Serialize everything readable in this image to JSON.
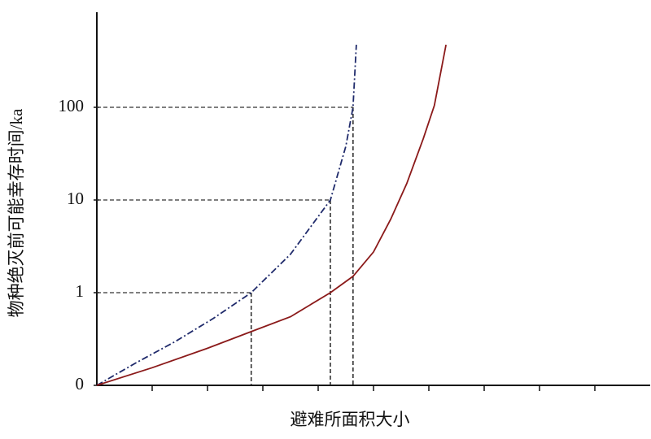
{
  "chart_data": {
    "type": "line",
    "xlabel": "避难所面积大小",
    "ylabel": "物种绝灭前可能幸存时间/ka",
    "yscale": "symlog",
    "xlim": [
      0,
      10
    ],
    "xticks": [
      1,
      2,
      3,
      4,
      5,
      6,
      7,
      8,
      9
    ],
    "ylim": [
      0,
      1000
    ],
    "yticks": [
      0,
      1,
      10,
      100
    ],
    "series": [
      {
        "color": "#1f2a6b",
        "dash": "dashdot",
        "x": [
          0,
          0.7,
          1.41,
          2.1,
          2.79,
          3.5,
          4.22,
          4.5,
          4.63,
          4.69
        ],
        "values": [
          0,
          0.24,
          0.47,
          0.72,
          1,
          2.6,
          10,
          38,
          100,
          473
        ]
      },
      {
        "color": "#8b1a1a",
        "dash": "solid",
        "x": [
          0,
          1,
          2,
          2.79,
          3.5,
          4.22,
          4.63,
          5,
          5.31,
          5.6,
          5.9,
          6.1,
          6.31
        ],
        "values": [
          0,
          0.19,
          0.4,
          0.58,
          0.74,
          1,
          1.5,
          2.75,
          6.2,
          15,
          46,
          105,
          473
        ]
      }
    ],
    "guides": [
      {
        "x": 2.79,
        "y": 1
      },
      {
        "x": 4.22,
        "y": 10
      },
      {
        "x": 4.63,
        "y": 100
      }
    ]
  }
}
